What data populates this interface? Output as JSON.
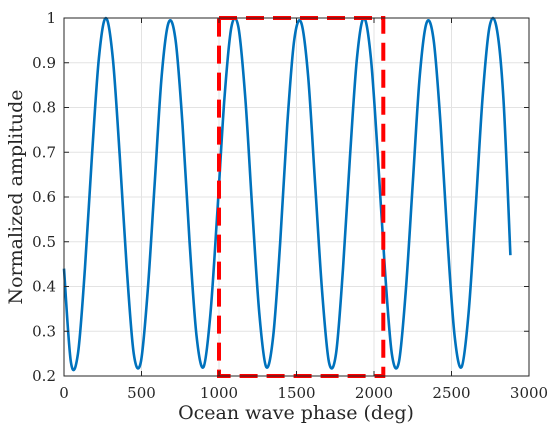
{
  "chart_data": {
    "type": "line",
    "title": "",
    "xlabel": "Ocean wave phase (deg)",
    "ylabel": "Normalized amplitude",
    "xlim": [
      0,
      3000
    ],
    "ylim": [
      0.2,
      1.0
    ],
    "x_ticks": [
      0,
      500,
      1000,
      1500,
      2000,
      2500,
      3000
    ],
    "y_ticks": [
      0.2,
      0.3,
      0.4,
      0.5,
      0.6,
      0.7,
      0.8,
      0.9,
      1.0
    ],
    "x_tick_labels": [
      "0",
      "500",
      "1000",
      "1500",
      "2000",
      "2500",
      "3000"
    ],
    "y_tick_labels": [
      "0.2",
      "0.3",
      "0.4",
      "0.5",
      "0.6",
      "0.7",
      "0.8",
      "0.9",
      "1"
    ],
    "grid": true,
    "series": [
      {
        "color": "#0072BD",
        "x": [
          0,
          45,
          90,
          135,
          180,
          225,
          270,
          315,
          360,
          405,
          450,
          495,
          540,
          585,
          630,
          675,
          720,
          765,
          810,
          855,
          900,
          945,
          990,
          1035,
          1080,
          1125,
          1170,
          1215,
          1260,
          1305,
          1350,
          1395,
          1440,
          1485,
          1530,
          1575,
          1620,
          1665,
          1710,
          1755,
          1800,
          1845,
          1890,
          1935,
          1980,
          2025,
          2070,
          2115,
          2160,
          2205,
          2250,
          2295,
          2340,
          2385,
          2430,
          2475,
          2520,
          2565,
          2610,
          2655,
          2700,
          2745,
          2790,
          2835,
          2880
        ],
        "y": [
          0.44,
          0.23,
          0.25,
          0.44,
          0.69,
          0.91,
          1.0,
          0.91,
          0.69,
          0.44,
          0.25,
          0.23,
          0.39,
          0.63,
          0.87,
          0.99,
          0.95,
          0.76,
          0.5,
          0.29,
          0.22,
          0.34,
          0.57,
          0.82,
          0.98,
          0.98,
          0.82,
          0.57,
          0.34,
          0.22,
          0.29,
          0.5,
          0.76,
          0.95,
          0.99,
          0.87,
          0.63,
          0.39,
          0.23,
          0.25,
          0.44,
          0.69,
          0.91,
          1.0,
          0.91,
          0.69,
          0.44,
          0.25,
          0.23,
          0.39,
          0.63,
          0.87,
          0.99,
          0.95,
          0.76,
          0.5,
          0.29,
          0.22,
          0.34,
          0.57,
          0.82,
          0.98,
          0.98,
          0.82,
          0.47
        ]
      }
    ],
    "annotations": [
      {
        "type": "dashed-rectangle",
        "color": "#FF0000",
        "x_range": [
          1000,
          2060
        ],
        "y_range": [
          0.2,
          1.0
        ]
      }
    ]
  }
}
